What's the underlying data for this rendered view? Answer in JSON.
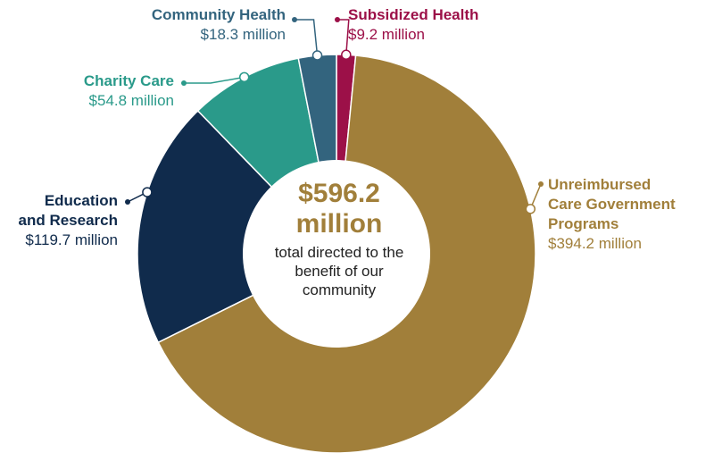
{
  "colors": {
    "unreimbursed": "#a17f3a",
    "education": "#102b4c",
    "charity": "#2a9a8a",
    "community": "#33647e",
    "subsidized": "#9c1048"
  },
  "center": {
    "total_line1": "$596.2",
    "total_line2": "million",
    "caption_lines": [
      "total directed to the",
      "benefit of our",
      "community"
    ]
  },
  "chart_data": {
    "type": "pie",
    "variant": "donut",
    "total": "$596.2 million",
    "unit": "million USD",
    "slices": [
      {
        "name": "Subsidized Health",
        "value": 9.2,
        "value_label": "$9.2 million",
        "color": "#9c1048"
      },
      {
        "name": "Unreimbursed Care Government Programs",
        "value": 394.2,
        "value_label": "$394.2 million",
        "color": "#a17f3a"
      },
      {
        "name": "Education and Research",
        "value": 119.7,
        "value_label": "$119.7 million",
        "color": "#102b4c"
      },
      {
        "name": "Charity Care",
        "value": 54.8,
        "value_label": "$54.8 million",
        "color": "#2a9a8a"
      },
      {
        "name": "Community Health",
        "value": 18.3,
        "value_label": "$18.3 million",
        "color": "#33647e"
      }
    ]
  },
  "labels": {
    "subsidized": {
      "name_lines": [
        "Subsidized Health"
      ],
      "value": "$9.2 million"
    },
    "community": {
      "name_lines": [
        "Community Health"
      ],
      "value": "$18.3 million"
    },
    "charity": {
      "name_lines": [
        "Charity Care"
      ],
      "value": "$54.8 million"
    },
    "education": {
      "name_lines": [
        "Education",
        "and Research"
      ],
      "value": "$119.7 million"
    },
    "unreimbursed": {
      "name_lines": [
        "Unreimbursed",
        "Care Government",
        "Programs"
      ],
      "value": "$394.2 million"
    }
  }
}
